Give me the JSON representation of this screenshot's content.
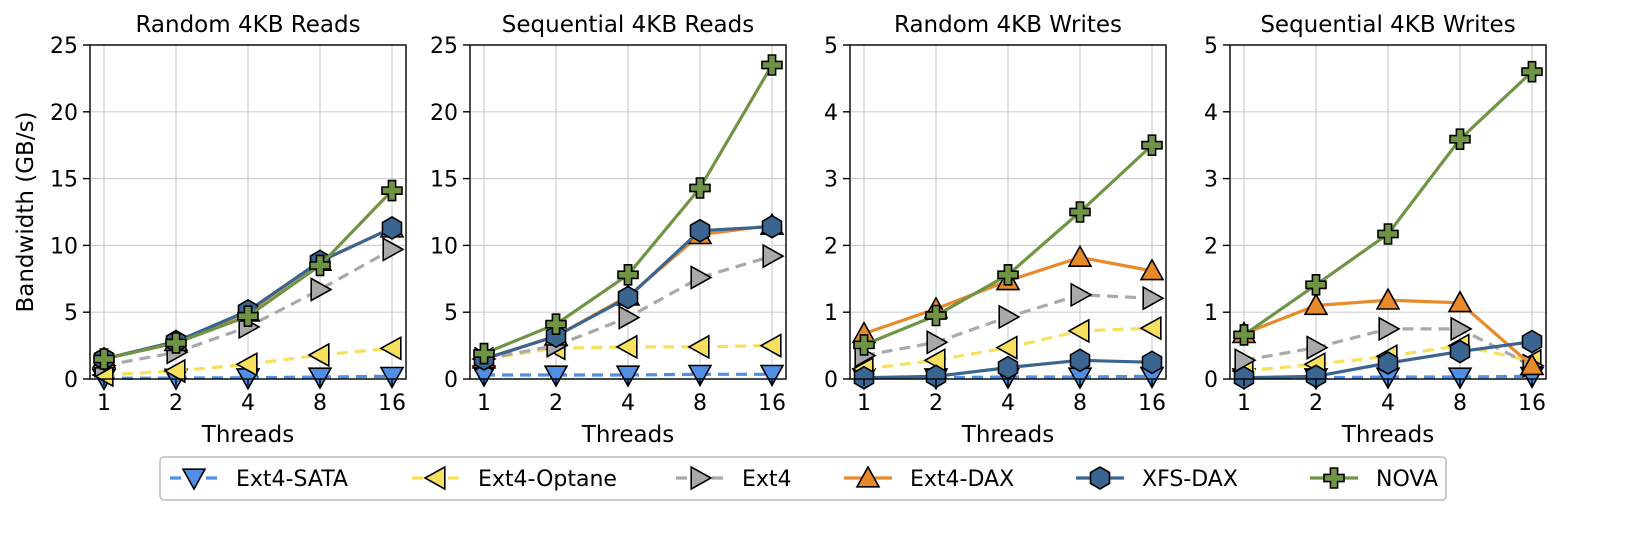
{
  "chart_data": {
    "type": "line",
    "x": [
      "1",
      "2",
      "4",
      "8",
      "16"
    ],
    "xlabel": "Threads",
    "ylabel": "Bandwidth (GB/s)",
    "legend": {
      "position": "bottom-center"
    },
    "grid": true,
    "series_styles": [
      {
        "name": "Ext4-SATA",
        "color": "#4f8fe6",
        "dash": true,
        "marker": "triangle-down"
      },
      {
        "name": "Ext4-Optane",
        "color": "#f6e05e",
        "dash": true,
        "marker": "triangle-left"
      },
      {
        "name": "Ext4",
        "color": "#a9a9a9",
        "dash": true,
        "marker": "triangle-right"
      },
      {
        "name": "Ext4-DAX",
        "color": "#e8892a",
        "dash": false,
        "marker": "triangle-up"
      },
      {
        "name": "XFS-DAX",
        "color": "#3a6591",
        "dash": false,
        "marker": "hexagon"
      },
      {
        "name": "NOVA",
        "color": "#6f9444",
        "dash": false,
        "marker": "plus"
      }
    ],
    "panels": [
      {
        "title": "Random 4KB Reads",
        "ylim": [
          0,
          25
        ],
        "yticks": [
          0,
          5,
          10,
          15,
          20,
          25
        ],
        "series": [
          {
            "name": "Ext4-SATA",
            "values": [
              0.05,
              0.07,
              0.1,
              0.15,
              0.2
            ]
          },
          {
            "name": "Ext4-Optane",
            "values": [
              0.3,
              0.6,
              1.1,
              1.8,
              2.3
            ]
          },
          {
            "name": "Ext4",
            "values": [
              1.0,
              2.0,
              3.9,
              6.7,
              9.7
            ]
          },
          {
            "name": "Ext4-DAX",
            "values": [
              1.5,
              2.8,
              5.0,
              8.8,
              11.3
            ]
          },
          {
            "name": "XFS-DAX",
            "values": [
              1.5,
              2.8,
              5.1,
              8.8,
              11.3
            ]
          },
          {
            "name": "NOVA",
            "values": [
              1.5,
              2.7,
              4.7,
              8.5,
              14.1
            ]
          }
        ]
      },
      {
        "title": "Sequential 4KB Reads",
        "ylim": [
          0,
          25
        ],
        "yticks": [
          0,
          5,
          10,
          15,
          20,
          25
        ],
        "series": [
          {
            "name": "Ext4-SATA",
            "values": [
              0.3,
              0.3,
              0.3,
              0.35,
              0.35
            ]
          },
          {
            "name": "Ext4-Optane",
            "values": [
              1.5,
              2.3,
              2.4,
              2.4,
              2.5
            ]
          },
          {
            "name": "Ext4",
            "values": [
              1.5,
              2.5,
              4.6,
              7.6,
              9.2
            ]
          },
          {
            "name": "Ext4-DAX",
            "values": [
              1.5,
              3.2,
              6.2,
              10.8,
              11.5
            ]
          },
          {
            "name": "XFS-DAX",
            "values": [
              1.5,
              3.2,
              6.1,
              11.1,
              11.4
            ]
          },
          {
            "name": "NOVA",
            "values": [
              1.9,
              4.1,
              7.8,
              14.3,
              23.5
            ]
          }
        ]
      },
      {
        "title": "Random 4KB Writes",
        "ylim": [
          0,
          5
        ],
        "yticks": [
          0,
          1,
          2,
          3,
          4,
          5
        ],
        "series": [
          {
            "name": "Ext4-SATA",
            "values": [
              0.02,
              0.02,
              0.03,
              0.03,
              0.04
            ]
          },
          {
            "name": "Ext4-Optane",
            "values": [
              0.15,
              0.28,
              0.47,
              0.72,
              0.76
            ]
          },
          {
            "name": "Ext4",
            "values": [
              0.35,
              0.55,
              0.93,
              1.26,
              1.21
            ]
          },
          {
            "name": "Ext4-DAX",
            "values": [
              0.68,
              1.05,
              1.47,
              1.82,
              1.62
            ]
          },
          {
            "name": "XFS-DAX",
            "values": [
              0.02,
              0.04,
              0.17,
              0.28,
              0.25
            ]
          },
          {
            "name": "NOVA",
            "values": [
              0.51,
              0.95,
              1.56,
              2.5,
              3.5
            ]
          }
        ]
      },
      {
        "title": "Sequential 4KB Writes",
        "ylim": [
          0,
          5
        ],
        "yticks": [
          0,
          1,
          2,
          3,
          4,
          5
        ],
        "series": [
          {
            "name": "Ext4-SATA",
            "values": [
              0.02,
              0.02,
              0.03,
              0.03,
              0.04
            ]
          },
          {
            "name": "Ext4-Optane",
            "values": [
              0.12,
              0.22,
              0.34,
              0.5,
              0.27
            ]
          },
          {
            "name": "Ext4",
            "values": [
              0.28,
              0.47,
              0.75,
              0.75,
              0.2
            ]
          },
          {
            "name": "Ext4-DAX",
            "values": [
              0.68,
              1.1,
              1.18,
              1.14,
              0.2
            ]
          },
          {
            "name": "XFS-DAX",
            "values": [
              0.02,
              0.04,
              0.24,
              0.41,
              0.56
            ]
          },
          {
            "name": "NOVA",
            "values": [
              0.66,
              1.41,
              2.17,
              3.59,
              4.6
            ]
          }
        ]
      }
    ]
  }
}
